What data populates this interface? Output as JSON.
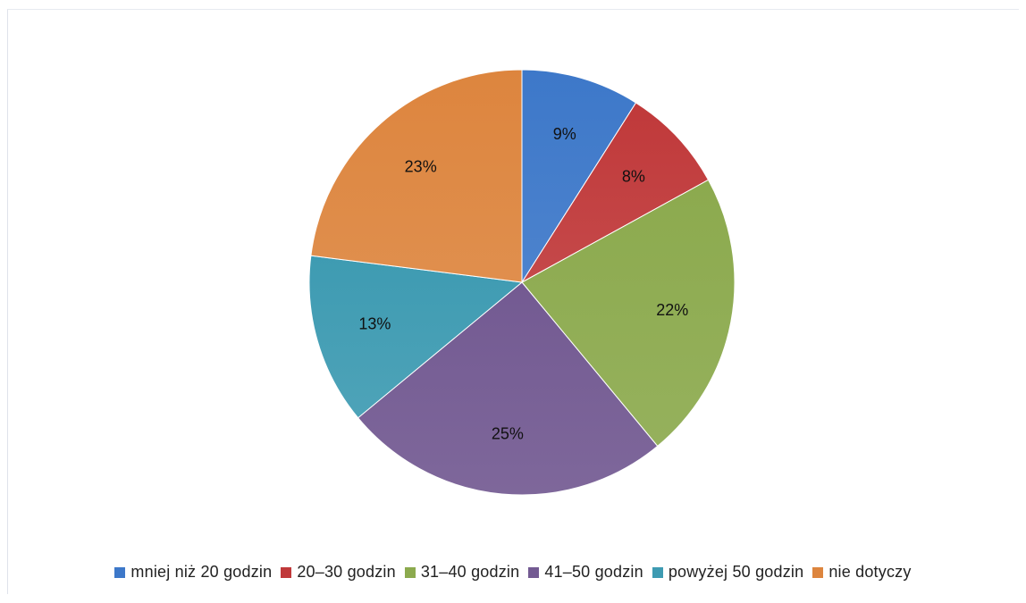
{
  "chart_data": {
    "type": "pie",
    "title": "",
    "categories": [
      "mniej niż 20 godzin",
      "20–30 godzin",
      "31–40 godzin",
      "41–50 godzin",
      "powyżej 50 godzin",
      "nie dotyczy"
    ],
    "values": [
      9,
      8,
      22,
      25,
      13,
      23
    ],
    "value_labels": [
      "9%",
      "8%",
      "22%",
      "25%",
      "13%",
      "23%"
    ],
    "colors": [
      "#3D78C9",
      "#C0393A",
      "#8CAA4E",
      "#735A92",
      "#3E9BB2",
      "#DD853E"
    ],
    "start_angle": "top",
    "direction": "clockwise",
    "legend_placement": "bottom",
    "labels_placement": "inside"
  }
}
